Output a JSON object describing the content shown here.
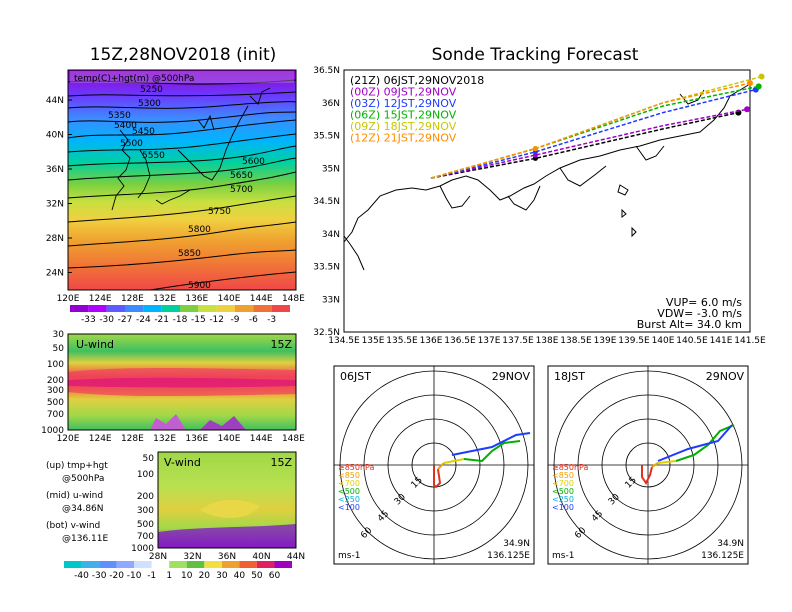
{
  "left": {
    "title": "15Z,28NOV2018 (init)",
    "top_panel": {
      "label": "temp(C)+hgt(m) @500hPa",
      "lat_ticks": [
        "44N",
        "40N",
        "36N",
        "32N",
        "28N",
        "24N"
      ],
      "lon_ticks": [
        "120E",
        "124E",
        "128E",
        "132E",
        "136E",
        "140E",
        "144E",
        "148E"
      ],
      "contour_labels": [
        "5250",
        "5300",
        "5350",
        "5400",
        "5450",
        "5500",
        "5550",
        "5600",
        "5650",
        "5700",
        "5750",
        "5800",
        "5850",
        "5900"
      ],
      "colorbar_ticks": [
        "-33",
        "-30",
        "-27",
        "-24",
        "-21",
        "-18",
        "-15",
        "-12",
        "-9",
        "-6",
        "-3"
      ],
      "colors": [
        "#9400d3",
        "#b000ff",
        "#5b5bff",
        "#3c8cff",
        "#00b4ff",
        "#00d0a0",
        "#7cd040",
        "#c8e040",
        "#f0d040",
        "#f0a030",
        "#f07038",
        "#f04848"
      ]
    },
    "mid_panel": {
      "label": "U-wind",
      "time": "15Z",
      "p_ticks": [
        "30",
        "50",
        "100",
        "200",
        "300",
        "500",
        "700",
        "1000"
      ],
      "lon_ticks": [
        "120E",
        "124E",
        "128E",
        "132E",
        "136E",
        "140E",
        "144E",
        "148E"
      ]
    },
    "bot_panel": {
      "label": "V-wind",
      "time": "15Z",
      "p_ticks": [
        "50",
        "100",
        "200",
        "300",
        "500",
        "700",
        "1000"
      ],
      "lat_ticks": [
        "28N",
        "32N",
        "36N",
        "40N",
        "44N"
      ]
    },
    "notes": [
      {
        "a": "(up) tmp+hgt",
        "b": "@500hPa"
      },
      {
        "a": "(mid) u-wind",
        "b": "@34.86N"
      },
      {
        "a": "(bot) v-wind",
        "b": "@136.11E"
      }
    ],
    "wind_colorbar_ticks": [
      "-40",
      "-30",
      "-20",
      "-10",
      "-1",
      "1",
      "10",
      "20",
      "30",
      "40",
      "50",
      "60"
    ]
  },
  "right": {
    "title": "Sonde Tracking Forecast",
    "legend": [
      {
        "text": "(21Z)  06JST,29NOV2018",
        "color": "#000000"
      },
      {
        "text": "(00Z)  09JST,29NOV",
        "color": "#a000c8"
      },
      {
        "text": "(03Z)  12JST,29NOV",
        "color": "#1e3cff"
      },
      {
        "text": "(06Z)  15JST,29NOV",
        "color": "#00b400"
      },
      {
        "text": "(09Z)  18JST,29NOV",
        "color": "#c8c800"
      },
      {
        "text": "(12Z)  21JST,29NOV",
        "color": "#ff8c00"
      }
    ],
    "lat_ticks": [
      "36.5N",
      "36N",
      "35.5N",
      "35N",
      "34.5N",
      "34N",
      "33.5N",
      "33N",
      "32.5N"
    ],
    "lon_ticks": [
      "134.5E",
      "135E",
      "135.5E",
      "136E",
      "136.5E",
      "137E",
      "137.5E",
      "138E",
      "138.5E",
      "139E",
      "139.5E",
      "140E",
      "140.5E",
      "141E",
      "141.5E"
    ],
    "params": [
      "VUP=  6.0 m/s",
      "VDW= -3.0 m/s",
      "Burst Alt= 34.0 km"
    ]
  },
  "hodo_left": {
    "time": "06JST",
    "date": "29NOV",
    "levels": [
      {
        "t": "≥850hPa",
        "c": "#e03020"
      },
      {
        "t": "<850",
        "c": "#f0a000"
      },
      {
        "t": "<700",
        "c": "#e0d000"
      },
      {
        "t": "<500",
        "c": "#00b000"
      },
      {
        "t": "<250",
        "c": "#00b0e0"
      },
      {
        "t": "<100",
        "c": "#1e3cff"
      }
    ],
    "ring_labels": [
      "15",
      "30",
      "45",
      "60"
    ],
    "unit": "ms-1",
    "lat": "34.9N",
    "lon": "136.125E"
  },
  "hodo_right": {
    "time": "18JST",
    "date": "29NOV",
    "levels": [
      {
        "t": "≥850hPa",
        "c": "#e03020"
      },
      {
        "t": "<850",
        "c": "#f0a000"
      },
      {
        "t": "<700",
        "c": "#e0d000"
      },
      {
        "t": "<500",
        "c": "#00b000"
      },
      {
        "t": "<250",
        "c": "#00b0e0"
      },
      {
        "t": "<100",
        "c": "#1e3cff"
      }
    ],
    "ring_labels": [
      "15",
      "30",
      "45",
      "60"
    ],
    "unit": "ms-1",
    "lat": "34.9N",
    "lon": "136.125E"
  },
  "chart_data": [
    {
      "type": "heatmap",
      "title": "15Z,28NOV2018 (init)",
      "label": "temp(C)+hgt(m) @500hPa",
      "colorbar": [
        -33,
        -30,
        -27,
        -24,
        -21,
        -18,
        -15,
        -12,
        -9,
        -6,
        -3
      ]
    },
    {
      "type": "heatmap",
      "label": "U-wind",
      "time": "15Z",
      "colorbar": [
        -40,
        -30,
        -20,
        -10,
        -1,
        1,
        10,
        20,
        30,
        40,
        50,
        60
      ]
    },
    {
      "type": "heatmap",
      "label": "V-wind",
      "time": "15Z",
      "colorbar": [
        -40,
        -30,
        -20,
        -10,
        -1,
        1,
        10,
        20,
        30,
        40,
        50,
        60
      ]
    },
    {
      "type": "line",
      "title": "Sonde Tracking Forecast",
      "xlim": [
        134.5,
        141.5
      ],
      "ylim": [
        32.5,
        36.5
      ],
      "series": [
        {
          "name": "(21Z)  06JST,29NOV2018",
          "x": [
            136.0,
            137.8,
            140.0,
            141.3
          ],
          "y": [
            34.85,
            35.15,
            35.6,
            35.85
          ]
        },
        {
          "name": "(00Z)  09JST,29NOV",
          "x": [
            136.0,
            137.8,
            140.0,
            141.45
          ],
          "y": [
            34.85,
            35.2,
            35.65,
            35.9
          ]
        },
        {
          "name": "(03Z)  12JST,29NOV",
          "x": [
            136.0,
            137.8,
            140.0,
            141.6
          ],
          "y": [
            34.85,
            35.25,
            35.85,
            36.2
          ]
        },
        {
          "name": "(06Z)  15JST,29NOV",
          "x": [
            136.0,
            137.8,
            140.0,
            141.65
          ],
          "y": [
            34.85,
            35.3,
            35.95,
            36.25
          ]
        },
        {
          "name": "(09Z)  18JST,29NOV",
          "x": [
            136.0,
            137.8,
            140.0,
            141.7
          ],
          "y": [
            34.85,
            35.3,
            36.0,
            36.4
          ]
        },
        {
          "name": "(12Z)  21JST,29NOV",
          "x": [
            136.0,
            137.8,
            140.0,
            141.5
          ],
          "y": [
            34.85,
            35.3,
            36.0,
            36.3
          ]
        }
      ]
    }
  ]
}
